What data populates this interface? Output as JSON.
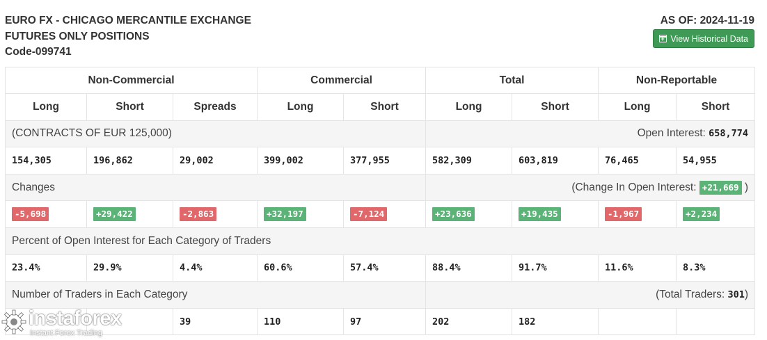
{
  "header": {
    "line1": "EURO FX - CHICAGO MERCANTILE EXCHANGE",
    "line2": "FUTURES ONLY POSITIONS",
    "line3": "Code-099741",
    "as_of": "AS OF: 2024-11-19",
    "history_button": "View Historical Data"
  },
  "groups": [
    "Non-Commercial",
    "Commercial",
    "Total",
    "Non-Reportable"
  ],
  "columns": [
    "Long",
    "Short",
    "Spreads",
    "Long",
    "Short",
    "Long",
    "Short",
    "Long",
    "Short"
  ],
  "contracts": {
    "label": "(CONTRACTS OF EUR 125,000)",
    "oi_label": "Open Interest:",
    "oi_value": "658,774",
    "values": [
      "154,305",
      "196,862",
      "29,002",
      "399,002",
      "377,955",
      "582,309",
      "603,819",
      "76,465",
      "54,955"
    ]
  },
  "changes": {
    "label": "Changes",
    "oi_label": "(Change In Open Interest:",
    "oi_value": "+21,669",
    "oi_close": ")",
    "values": [
      "-5,698",
      "+29,422",
      "-2,863",
      "+32,197",
      "-7,124",
      "+23,636",
      "+19,435",
      "-1,967",
      "+2,234"
    ],
    "colors": {
      "negative": "#e0686b",
      "positive": "#5cb377"
    }
  },
  "percent": {
    "label": "Percent of Open Interest for Each Category of Traders",
    "values": [
      "23.4%",
      "29.9%",
      "4.4%",
      "60.6%",
      "57.4%",
      "88.4%",
      "91.7%",
      "11.6%",
      "8.3%"
    ]
  },
  "traders": {
    "label": "Number of Traders in Each Category",
    "total_label": "(Total Traders:",
    "total_value": "301",
    "total_close": ")",
    "values": [
      "",
      "",
      "39",
      "110",
      "97",
      "202",
      "182",
      "",
      ""
    ]
  },
  "watermark": {
    "name": "instaforex",
    "tagline": "Instant Forex Trading",
    "icon": "gear-logo-icon"
  },
  "accent_color": "#3e9a54"
}
